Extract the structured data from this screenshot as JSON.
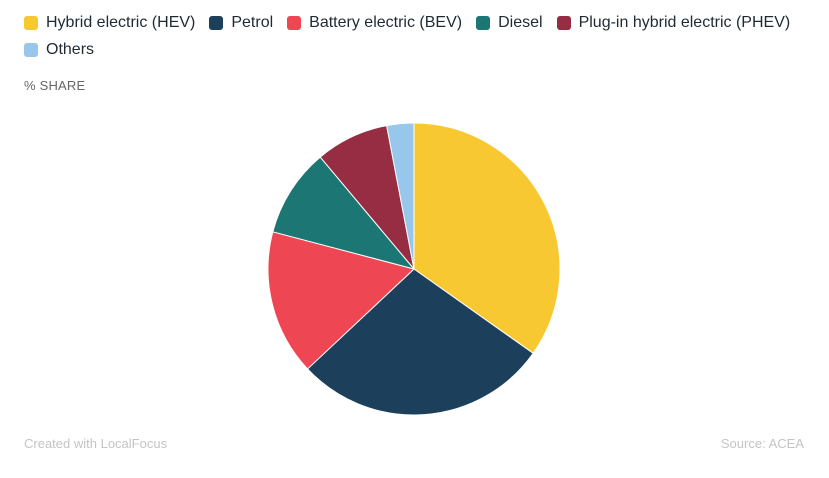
{
  "chart_data": {
    "type": "pie",
    "title": "",
    "subtitle": "% SHARE",
    "legend_position": "top-left",
    "slices": [
      {
        "name": "Hybrid electric (HEV)",
        "value": 34.8,
        "color": "#F8C832"
      },
      {
        "name": "Petrol",
        "value": 28.2,
        "color": "#1C405C"
      },
      {
        "name": "Battery electric (BEV)",
        "value": 16.1,
        "color": "#EE4753"
      },
      {
        "name": "Diesel",
        "value": 9.8,
        "color": "#1C7673"
      },
      {
        "name": "Plug-in hybrid electric (PHEV)",
        "value": 8.1,
        "color": "#962D42"
      },
      {
        "name": "Others",
        "value": 3.0,
        "color": "#97C7EA"
      }
    ]
  },
  "footer": {
    "credit": "Created with LocalFocus",
    "source": "Source:  ACEA"
  }
}
